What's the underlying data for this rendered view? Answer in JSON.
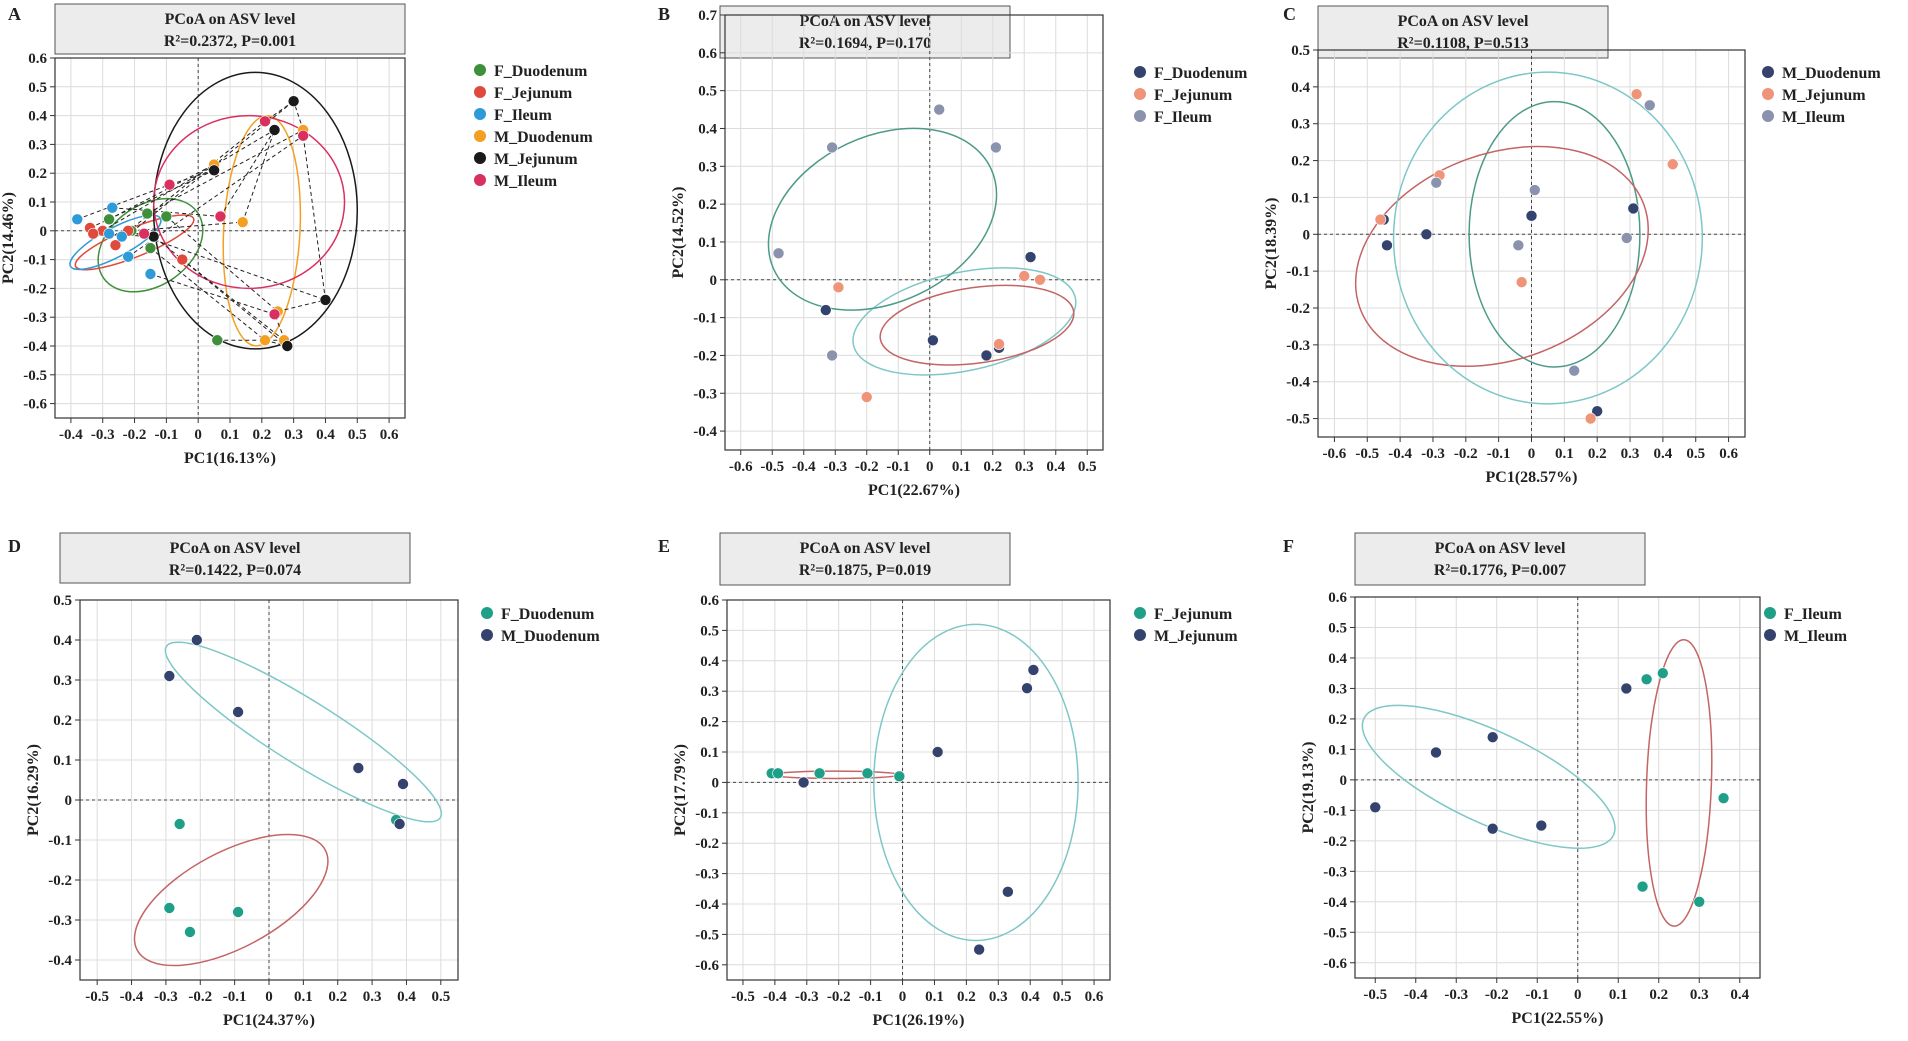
{
  "figure": {
    "colors": {
      "green": "#3f8f3a",
      "red": "#e04a3c",
      "blue": "#2f9ad8",
      "orange": "#f3a022",
      "black": "#1a1a1a",
      "crimson": "#d9305f",
      "navy": "#34426e",
      "salmon": "#ef9478",
      "grey": "#8b92ae",
      "teal": "#1f9e88",
      "ring_teal": "#7ec7c7",
      "ring_red": "#c46464",
      "ring_green": "#4d9a88"
    }
  },
  "chart_data": [
    {
      "panel": "A",
      "type": "scatter",
      "title": "PCoA on ASV level",
      "subtitle": "R²=0.2372, P=0.001",
      "xlabel": "PC1(16.13%)",
      "ylabel": "PC2(14.46%)",
      "xlim": [
        -0.45,
        0.65
      ],
      "ylim": [
        -0.65,
        0.6
      ],
      "xticks": [
        -0.4,
        -0.3,
        -0.2,
        -0.1,
        0,
        0.1,
        0.2,
        0.3,
        0.4,
        0.5,
        0.6
      ],
      "xtick_labels": [
        "-0.4",
        "-0.3",
        "-0.2",
        "-0.1",
        "0",
        "0.1",
        "0.2",
        "0.3",
        "0.4",
        "0.5",
        "0.6"
      ],
      "yticks": [
        -0.6,
        -0.5,
        -0.4,
        -0.3,
        -0.2,
        -0.1,
        0,
        0.1,
        0.2,
        0.3,
        0.4,
        0.5,
        0.6
      ],
      "ytick_labels": [
        "-0.6",
        "-0.5",
        "-0.4",
        "-0.3",
        "-0.2",
        "-0.1",
        "0",
        "0.1",
        "0.2",
        "0.3",
        "0.4",
        "0.5",
        "0.6"
      ],
      "series": [
        {
          "name": "F_Duodenum",
          "color": "green",
          "x": [
            -0.28,
            -0.21,
            -0.16,
            -0.1,
            -0.15,
            0.06
          ],
          "y": [
            0.04,
            0.0,
            0.06,
            0.05,
            -0.06,
            -0.38
          ]
        },
        {
          "name": "F_Jejunum",
          "color": "red",
          "x": [
            -0.34,
            -0.3,
            -0.26,
            -0.22,
            -0.05,
            -0.33
          ],
          "y": [
            0.01,
            0.0,
            -0.05,
            0.0,
            -0.1,
            -0.01
          ]
        },
        {
          "name": "F_Ileum",
          "color": "blue",
          "x": [
            -0.38,
            -0.27,
            -0.24,
            -0.22,
            -0.15,
            -0.28
          ],
          "y": [
            0.04,
            0.08,
            -0.02,
            -0.09,
            -0.15,
            -0.01
          ]
        },
        {
          "name": "M_Duodenum",
          "color": "orange",
          "x": [
            0.05,
            0.14,
            0.33,
            0.25,
            0.21,
            0.27
          ],
          "y": [
            0.23,
            0.03,
            0.35,
            -0.28,
            -0.38,
            -0.38
          ]
        },
        {
          "name": "M_Jejunum",
          "color": "black",
          "x": [
            0.05,
            0.24,
            0.3,
            0.4,
            0.28,
            -0.14
          ],
          "y": [
            0.21,
            0.35,
            0.45,
            -0.24,
            -0.4,
            -0.02
          ]
        },
        {
          "name": "M_Ileum",
          "color": "crimson",
          "x": [
            -0.09,
            0.07,
            0.21,
            0.33,
            0.24,
            -0.17
          ],
          "y": [
            0.16,
            0.05,
            0.38,
            0.33,
            -0.29,
            -0.01
          ]
        }
      ],
      "ellipses": [
        {
          "series": "F_Duodenum",
          "color": "green",
          "cx": -0.15,
          "cy": -0.05,
          "rx": 0.18,
          "ry": 0.14,
          "angle_deg": -35
        },
        {
          "series": "F_Jejunum",
          "color": "red",
          "cx": -0.2,
          "cy": -0.04,
          "rx": 0.2,
          "ry": 0.05,
          "angle_deg": -22
        },
        {
          "series": "F_Ileum",
          "color": "blue",
          "cx": -0.26,
          "cy": -0.04,
          "rx": 0.16,
          "ry": 0.05,
          "angle_deg": -28
        },
        {
          "series": "M_Duodenum",
          "color": "orange",
          "cx": 0.2,
          "cy": 0.0,
          "rx": 0.12,
          "ry": 0.4,
          "angle_deg": 3
        },
        {
          "series": "M_Jejunum",
          "color": "black",
          "cx": 0.18,
          "cy": 0.07,
          "rx": 0.32,
          "ry": 0.48,
          "angle_deg": 0
        },
        {
          "series": "M_Ileum",
          "color": "crimson",
          "cx": 0.16,
          "cy": 0.1,
          "rx": 0.3,
          "ry": 0.3,
          "angle_deg": 0
        }
      ],
      "links_between_series": [
        [
          "F_Duodenum",
          "M_Duodenum"
        ],
        [
          "F_Jejunum",
          "M_Jejunum"
        ],
        [
          "F_Ileum",
          "M_Ileum"
        ],
        [
          "M_Duodenum",
          "M_Jejunum"
        ],
        [
          "M_Jejunum",
          "M_Ileum"
        ]
      ]
    },
    {
      "panel": "B",
      "type": "scatter",
      "title": "PCoA on ASV level",
      "subtitle": "R²=0.1694, P=0.170",
      "xlabel": "PC1(22.67%)",
      "ylabel": "PC2(14.52%)",
      "xlim": [
        -0.65,
        0.55
      ],
      "ylim": [
        -0.45,
        0.7
      ],
      "xticks": [
        -0.6,
        -0.5,
        -0.4,
        -0.3,
        -0.2,
        -0.1,
        0,
        0.1,
        0.2,
        0.3,
        0.4,
        0.5
      ],
      "xtick_labels": [
        "-0.6",
        "-0.5",
        "-0.4",
        "-0.3",
        "-0.2",
        "-0.1",
        "0",
        "0.1",
        "0.2",
        "0.3",
        "0.4",
        "0.5"
      ],
      "yticks": [
        -0.4,
        -0.3,
        -0.2,
        -0.1,
        0,
        0.1,
        0.2,
        0.3,
        0.4,
        0.5,
        0.6,
        0.7
      ],
      "ytick_labels": [
        "-0.4",
        "-0.3",
        "-0.2",
        "-0.1",
        "0",
        "0.1",
        "0.2",
        "0.3",
        "0.4",
        "0.5",
        "0.6",
        "0.7"
      ],
      "series": [
        {
          "name": "F_Duodenum",
          "color": "navy",
          "x": [
            -0.33,
            0.01,
            0.32,
            0.22,
            0.18
          ],
          "y": [
            -0.08,
            -0.16,
            0.06,
            -0.18,
            -0.2
          ]
        },
        {
          "name": "F_Jejunum",
          "color": "salmon",
          "x": [
            -0.29,
            -0.2,
            0.3,
            0.35,
            0.22
          ],
          "y": [
            -0.02,
            -0.31,
            0.01,
            0.0,
            -0.17
          ]
        },
        {
          "name": "F_Ileum",
          "color": "grey",
          "x": [
            -0.31,
            0.03,
            0.21,
            -0.48,
            -0.31
          ],
          "y": [
            0.35,
            0.45,
            0.35,
            0.07,
            -0.2
          ]
        }
      ],
      "ellipses": [
        {
          "series": "F_Duodenum",
          "color": "ring_teal",
          "cx": 0.11,
          "cy": -0.11,
          "rx": 0.36,
          "ry": 0.13,
          "angle_deg": -12
        },
        {
          "series": "F_Jejunum",
          "color": "ring_red",
          "cx": 0.15,
          "cy": -0.12,
          "rx": 0.31,
          "ry": 0.1,
          "angle_deg": -8
        },
        {
          "series": "F_Ileum",
          "color": "ring_green",
          "cx": -0.15,
          "cy": 0.16,
          "rx": 0.38,
          "ry": 0.22,
          "angle_deg": -25
        }
      ]
    },
    {
      "panel": "C",
      "type": "scatter",
      "title": "PCoA on ASV level",
      "subtitle": "R²=0.1108, P=0.513",
      "xlabel": "PC1(28.57%)",
      "ylabel": "PC2(18.39%)",
      "xlim": [
        -0.65,
        0.65
      ],
      "ylim": [
        -0.55,
        0.5
      ],
      "xticks": [
        -0.6,
        -0.5,
        -0.4,
        -0.3,
        -0.2,
        -0.1,
        0,
        0.1,
        0.2,
        0.3,
        0.4,
        0.5,
        0.6
      ],
      "xtick_labels": [
        "-0.6",
        "-0.5",
        "-0.4",
        "-0.3",
        "-0.2",
        "-0.1",
        "0",
        "0.1",
        "0.2",
        "0.3",
        "0.4",
        "0.5",
        "0.6"
      ],
      "yticks": [
        -0.5,
        -0.4,
        -0.3,
        -0.2,
        -0.1,
        0,
        0.1,
        0.2,
        0.3,
        0.4,
        0.5
      ],
      "ytick_labels": [
        "-0.5",
        "-0.4",
        "-0.3",
        "-0.2",
        "-0.1",
        "0",
        "0.1",
        "0.2",
        "0.3",
        "0.4",
        "0.5"
      ],
      "series": [
        {
          "name": "M_Duodenum",
          "color": "navy",
          "x": [
            -0.45,
            -0.44,
            -0.32,
            0.0,
            0.31,
            0.2
          ],
          "y": [
            0.04,
            -0.03,
            0.0,
            0.05,
            0.07,
            -0.48
          ]
        },
        {
          "name": "M_Jejunum",
          "color": "salmon",
          "x": [
            -0.46,
            -0.28,
            -0.03,
            0.32,
            0.43,
            0.18
          ],
          "y": [
            0.04,
            0.16,
            -0.13,
            0.38,
            0.19,
            -0.5
          ]
        },
        {
          "name": "M_Ileum",
          "color": "grey",
          "x": [
            -0.29,
            0.01,
            -0.04,
            0.29,
            0.36,
            0.13
          ],
          "y": [
            0.14,
            0.12,
            -0.03,
            -0.01,
            0.35,
            -0.37
          ]
        }
      ],
      "ellipses": [
        {
          "series": "M_Duodenum",
          "color": "ring_green",
          "cx": 0.07,
          "cy": 0.0,
          "rx": 0.26,
          "ry": 0.36,
          "angle_deg": 0
        },
        {
          "series": "M_Jejunum",
          "color": "ring_red",
          "cx": -0.09,
          "cy": -0.06,
          "rx": 0.46,
          "ry": 0.28,
          "angle_deg": -20
        },
        {
          "series": "M_Ileum",
          "color": "ring_teal",
          "cx": 0.05,
          "cy": -0.01,
          "rx": 0.47,
          "ry": 0.45,
          "angle_deg": 0
        }
      ]
    },
    {
      "panel": "D",
      "type": "scatter",
      "title": "PCoA on ASV level",
      "subtitle": "R²=0.1422, P=0.074",
      "xlabel": "PC1(24.37%)",
      "ylabel": "PC2(16.29%)",
      "xlim": [
        -0.55,
        0.55
      ],
      "ylim": [
        -0.45,
        0.5
      ],
      "xticks": [
        -0.5,
        -0.4,
        -0.3,
        -0.2,
        -0.1,
        0,
        0.1,
        0.2,
        0.3,
        0.4,
        0.5
      ],
      "xtick_labels": [
        "-0.5",
        "-0.4",
        "-0.3",
        "-0.2",
        "-0.1",
        "0",
        "0.1",
        "0.2",
        "0.3",
        "0.4",
        "0.5"
      ],
      "yticks": [
        -0.4,
        -0.3,
        -0.2,
        -0.1,
        0,
        0.1,
        0.2,
        0.3,
        0.4,
        0.5
      ],
      "ytick_labels": [
        "-0.4",
        "-0.3",
        "-0.2",
        "-0.1",
        "0",
        "0.1",
        "0.2",
        "0.3",
        "0.4",
        "0.5"
      ],
      "series": [
        {
          "name": "F_Duodenum",
          "color": "teal",
          "x": [
            -0.26,
            -0.29,
            -0.23,
            -0.09,
            0.37
          ],
          "y": [
            -0.06,
            -0.27,
            -0.33,
            -0.28,
            -0.05
          ]
        },
        {
          "name": "M_Duodenum",
          "color": "navy",
          "x": [
            -0.21,
            -0.29,
            -0.09,
            0.26,
            0.39,
            0.38
          ],
          "y": [
            0.4,
            0.31,
            0.22,
            0.08,
            0.04,
            -0.06
          ]
        }
      ],
      "ellipses": [
        {
          "series": "F_Duodenum",
          "color": "ring_red",
          "cx": -0.11,
          "cy": -0.25,
          "rx": 0.31,
          "ry": 0.12,
          "angle_deg": -28
        },
        {
          "series": "M_Duodenum",
          "color": "ring_teal",
          "cx": 0.1,
          "cy": 0.17,
          "rx": 0.47,
          "ry": 0.08,
          "angle_deg": 32
        }
      ]
    },
    {
      "panel": "E",
      "type": "scatter",
      "title": "PCoA on ASV level",
      "subtitle": "R²=0.1875, P=0.019",
      "xlabel": "PC1(26.19%)",
      "ylabel": "PC2(17.79%)",
      "xlim": [
        -0.55,
        0.65
      ],
      "ylim": [
        -0.65,
        0.6
      ],
      "xticks": [
        -0.5,
        -0.4,
        -0.3,
        -0.2,
        -0.1,
        0,
        0.1,
        0.2,
        0.3,
        0.4,
        0.5,
        0.6
      ],
      "xtick_labels": [
        "-0.5",
        "-0.4",
        "-0.3",
        "-0.2",
        "-0.1",
        "0",
        "0.1",
        "0.2",
        "0.3",
        "0.4",
        "0.5",
        "0.6"
      ],
      "yticks": [
        -0.6,
        -0.5,
        -0.4,
        -0.3,
        -0.2,
        -0.1,
        0,
        0.1,
        0.2,
        0.3,
        0.4,
        0.5,
        0.6
      ],
      "ytick_labels": [
        "-0.6",
        "-0.5",
        "-0.4",
        "-0.3",
        "-0.2",
        "-0.1",
        "0",
        "0.1",
        "0.2",
        "0.3",
        "0.4",
        "0.5",
        "0.6"
      ],
      "series": [
        {
          "name": "F_Jejunum",
          "color": "teal",
          "x": [
            -0.41,
            -0.39,
            -0.26,
            -0.11,
            -0.01
          ],
          "y": [
            0.03,
            0.03,
            0.03,
            0.03,
            0.02
          ]
        },
        {
          "name": "M_Jejunum",
          "color": "navy",
          "x": [
            -0.31,
            0.11,
            0.39,
            0.41,
            0.33,
            0.24
          ],
          "y": [
            0.0,
            0.1,
            0.31,
            0.37,
            -0.36,
            -0.55
          ]
        }
      ],
      "ellipses": [
        {
          "series": "F_Jejunum",
          "color": "ring_red",
          "cx": -0.21,
          "cy": 0.025,
          "rx": 0.2,
          "ry": 0.012,
          "angle_deg": 0
        },
        {
          "series": "M_Jejunum",
          "color": "ring_teal",
          "cx": 0.23,
          "cy": 0.0,
          "rx": 0.32,
          "ry": 0.52,
          "angle_deg": 0
        }
      ]
    },
    {
      "panel": "F",
      "type": "scatter",
      "title": "PCoA on ASV level",
      "subtitle": "R²=0.1776, P=0.007",
      "xlabel": "PC1(22.55%)",
      "ylabel": "PC2(19.13%)",
      "xlim": [
        -0.55,
        0.45
      ],
      "ylim": [
        -0.65,
        0.6
      ],
      "xticks": [
        -0.5,
        -0.4,
        -0.3,
        -0.2,
        -0.1,
        0,
        0.1,
        0.2,
        0.3,
        0.4
      ],
      "xtick_labels": [
        "-0.5",
        "-0.4",
        "-0.3",
        "-0.2",
        "-0.1",
        "0",
        "0.1",
        "0.2",
        "0.3",
        "0.4"
      ],
      "yticks": [
        -0.6,
        -0.5,
        -0.4,
        -0.3,
        -0.2,
        -0.1,
        0,
        0.1,
        0.2,
        0.3,
        0.4,
        0.5,
        0.6
      ],
      "ytick_labels": [
        "-0.6",
        "-0.5",
        "-0.4",
        "-0.3",
        "-0.2",
        "-0.1",
        "0",
        "0.1",
        "0.2",
        "0.3",
        "0.4",
        "0.5",
        "0.6"
      ],
      "series": [
        {
          "name": "F_Ileum",
          "color": "teal",
          "x": [
            0.17,
            0.21,
            0.36,
            0.16,
            0.3
          ],
          "y": [
            0.33,
            0.35,
            -0.06,
            -0.35,
            -0.4
          ]
        },
        {
          "name": "M_Ileum",
          "color": "navy",
          "x": [
            0.12,
            -0.35,
            -0.21,
            -0.5,
            -0.21,
            -0.09
          ],
          "y": [
            0.3,
            0.09,
            0.14,
            -0.09,
            -0.16,
            -0.15
          ]
        }
      ],
      "ellipses": [
        {
          "series": "F_Ileum",
          "color": "ring_red",
          "cx": 0.25,
          "cy": -0.01,
          "rx": 0.08,
          "ry": 0.47,
          "angle_deg": 2
        },
        {
          "series": "M_Ileum",
          "color": "ring_teal",
          "cx": -0.22,
          "cy": 0.01,
          "rx": 0.34,
          "ry": 0.15,
          "angle_deg": 25
        }
      ]
    }
  ]
}
